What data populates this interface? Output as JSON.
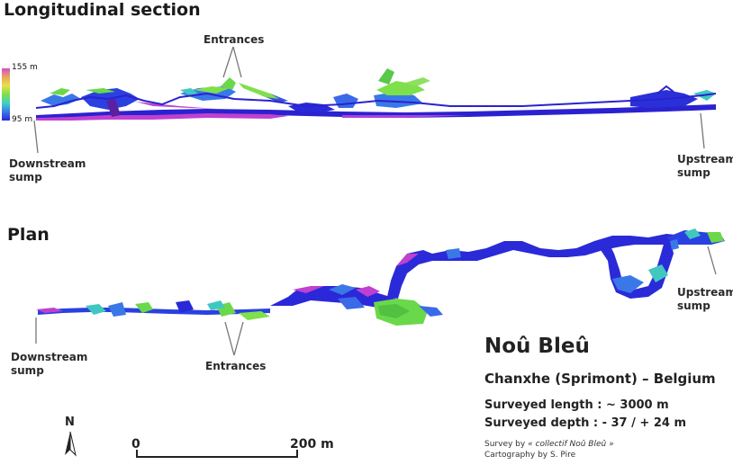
{
  "titles": {
    "section": "Longitudinal section",
    "plan": "Plan"
  },
  "section_labels": {
    "entrances": "Entrances",
    "downstream_line1": "Downstream",
    "downstream_line2": "sump",
    "upstream_line1": "Upstream",
    "upstream_line2": "sump"
  },
  "plan_labels": {
    "entrances": "Entrances",
    "downstream_line1": "Downstream",
    "downstream_line2": "sump",
    "upstream_line1": "Upstream",
    "upstream_line2": "sump"
  },
  "elevation_legend": {
    "max": "155 m",
    "min": "95 m",
    "colors": [
      "#d64ad0",
      "#e8a85a",
      "#e6e04a",
      "#7ee04a",
      "#3fd0c8",
      "#3a78e8",
      "#2a28d8"
    ]
  },
  "info": {
    "cave_name": "Noû Bleû",
    "location": "Chanxhe (Sprimont) – Belgium",
    "length": "Surveyed length : ~ 3000 m",
    "depth": "Surveyed depth : - 37 / + 24 m",
    "survey_prefix": "Survey by ",
    "survey_by": "« collectif Noû Bleû »",
    "cartography": "Cartography by S. Pire"
  },
  "scale_bar": {
    "start": "0",
    "end": "200 m"
  },
  "north_arrow": {
    "label": "N"
  },
  "colors": {
    "deep_blue": "#2a22d0",
    "blue": "#3a6ae8",
    "cyan": "#40c8c0",
    "green": "#6ad84a",
    "magenta": "#c040d0"
  }
}
